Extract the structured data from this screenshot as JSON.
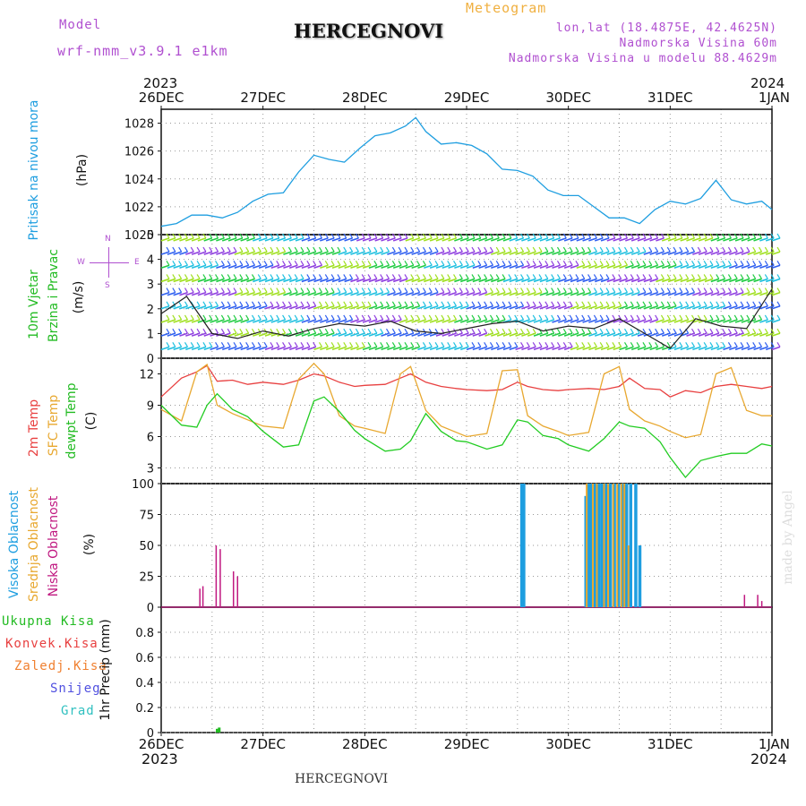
{
  "header": {
    "model_label": "Model",
    "model_name": "wrf-nmm_v3.9.1  e1km",
    "product": "Meteogram",
    "location": "HERCEGNOVI",
    "lonlat": "lon,lat (18.4875E, 42.4625N)",
    "altitude": "Nadmorska Visina 60m",
    "model_altitude": "Nadmorska Visina u modelu 88.4629m",
    "footer_location": "HERCEGNOVI",
    "watermark": "made by Angel"
  },
  "time_axis": {
    "start_year": "2023",
    "end_year": "2024",
    "labels": [
      "26DEC",
      "27DEC",
      "28DEC",
      "29DEC",
      "30DEC",
      "31DEC",
      "1JAN"
    ]
  },
  "panel_labels": {
    "pressure": [
      "Pritisak na nivou mora",
      "(hPa)"
    ],
    "wind": [
      "10m Vjetar",
      "Brzina i Pravac",
      "(m/s)"
    ],
    "compass": [
      "N",
      "W",
      "E",
      "S"
    ],
    "temperature": [
      "2m Temp",
      "SFC Temp",
      "dewpt Temp",
      "(C)"
    ],
    "clouds": [
      "Visoka Oblacnost",
      "Srednja Oblacnost",
      "Niska Oblacnost",
      "(%)"
    ],
    "precip": [
      "Ukupna Kisa",
      "Konvek.Kisa",
      "Zaledj.Kisa",
      "Snijeg",
      "Grad",
      "1hr Precip (mm)"
    ]
  },
  "colors": {
    "pressure": "#1e9ee0",
    "t2m": "#e84040",
    "tsfc": "#e8a830",
    "tdew": "#22cc22",
    "cloud_high": "#1e9ee0",
    "cloud_mid": "#e8a830",
    "cloud_low": "#c01880",
    "precip_total": "#22bb22",
    "label_purple": "#b050d0",
    "label_orange": "#f0b040"
  },
  "chart_data": [
    {
      "type": "line",
      "name": "pressure",
      "x_unit": "days from 26DEC 00",
      "x": [
        0,
        0.15,
        0.3,
        0.45,
        0.6,
        0.75,
        0.9,
        1.05,
        1.2,
        1.35,
        1.5,
        1.65,
        1.8,
        1.95,
        2.1,
        2.25,
        2.4,
        2.5,
        2.6,
        2.75,
        2.9,
        3.05,
        3.2,
        3.35,
        3.5,
        3.65,
        3.8,
        3.95,
        4.1,
        4.25,
        4.4,
        4.55,
        4.7,
        4.85,
        5.0,
        5.15,
        5.3,
        5.45,
        5.6,
        5.75,
        5.9,
        6.0
      ],
      "y": [
        1020.6,
        1020.8,
        1021.4,
        1021.4,
        1021.2,
        1021.6,
        1022.4,
        1022.9,
        1023.0,
        1024.5,
        1025.7,
        1025.4,
        1025.2,
        1026.2,
        1027.1,
        1027.3,
        1027.8,
        1028.4,
        1027.4,
        1026.5,
        1026.6,
        1026.4,
        1025.8,
        1024.7,
        1024.6,
        1024.2,
        1023.2,
        1022.8,
        1022.8,
        1022.0,
        1021.2,
        1021.2,
        1020.8,
        1021.8,
        1022.4,
        1022.2,
        1022.6,
        1023.9,
        1022.5,
        1022.2,
        1022.4,
        1021.8
      ],
      "ylim": [
        1020,
        1029
      ],
      "yticks": [
        "1020",
        "1022",
        "1024",
        "1026",
        "1028"
      ]
    },
    {
      "type": "line",
      "name": "wind",
      "yticks": [
        "0",
        "1",
        "2",
        "3",
        "4",
        "5"
      ],
      "ylim": [
        0,
        5
      ],
      "x": [
        0,
        0.25,
        0.5,
        0.75,
        1.0,
        1.25,
        1.5,
        1.75,
        2.0,
        2.25,
        2.5,
        2.75,
        3.0,
        3.25,
        3.5,
        3.75,
        4.0,
        4.25,
        4.5,
        4.75,
        5.0,
        5.25,
        5.5,
        5.75,
        6.0
      ],
      "speed": [
        1.8,
        2.5,
        1.0,
        0.8,
        1.1,
        0.9,
        1.2,
        1.4,
        1.3,
        1.5,
        1.1,
        1.0,
        1.2,
        1.4,
        1.5,
        1.1,
        1.3,
        1.2,
        1.6,
        1.0,
        0.4,
        1.6,
        1.3,
        1.2,
        2.8
      ]
    },
    {
      "type": "line",
      "name": "temperature",
      "x": [
        0,
        0.2,
        0.35,
        0.45,
        0.55,
        0.7,
        0.85,
        1.0,
        1.2,
        1.35,
        1.5,
        1.6,
        1.75,
        1.9,
        2.0,
        2.2,
        2.35,
        2.45,
        2.6,
        2.75,
        2.9,
        3.0,
        3.2,
        3.35,
        3.5,
        3.6,
        3.75,
        3.9,
        4.0,
        4.2,
        4.35,
        4.5,
        4.6,
        4.75,
        4.9,
        5.0,
        5.15,
        5.3,
        5.45,
        5.6,
        5.75,
        5.9,
        6.0
      ],
      "t2m": [
        9.8,
        11.6,
        12.2,
        12.8,
        11.3,
        11.4,
        11.0,
        11.2,
        11.0,
        11.4,
        12.0,
        11.8,
        11.2,
        10.8,
        10.9,
        11.0,
        11.6,
        12.0,
        11.2,
        10.8,
        10.6,
        10.5,
        10.4,
        10.5,
        11.2,
        10.8,
        10.5,
        10.4,
        10.5,
        10.6,
        10.5,
        10.8,
        11.6,
        10.6,
        10.5,
        9.8,
        10.4,
        10.2,
        10.8,
        11.0,
        10.8,
        10.6,
        10.8
      ],
      "tsfc": [
        8.6,
        7.5,
        12.2,
        12.9,
        9.0,
        8.2,
        7.6,
        7.0,
        6.8,
        11.5,
        13.0,
        12.0,
        8.0,
        7.0,
        6.8,
        6.3,
        12.0,
        12.7,
        8.5,
        7.0,
        6.4,
        6.0,
        6.3,
        12.3,
        12.4,
        8.0,
        7.0,
        6.5,
        6.1,
        6.4,
        12.0,
        12.7,
        8.6,
        7.5,
        7.0,
        6.5,
        5.9,
        6.2,
        12.0,
        12.6,
        8.5,
        8.0,
        8.0
      ],
      "tdew": [
        9.0,
        7.1,
        6.9,
        9.0,
        10.1,
        8.6,
        7.9,
        6.5,
        5.0,
        5.2,
        9.4,
        9.8,
        8.4,
        6.6,
        5.8,
        4.6,
        4.8,
        5.6,
        8.2,
        6.5,
        5.6,
        5.5,
        4.8,
        5.2,
        7.6,
        7.4,
        6.1,
        5.8,
        5.2,
        4.6,
        5.8,
        7.4,
        7.0,
        6.8,
        5.5,
        4.0,
        2.1,
        3.7,
        4.1,
        4.4,
        4.4,
        5.3,
        5.1
      ],
      "ylim": [
        1.5,
        13.5
      ],
      "yticks": [
        "3",
        "6",
        "9",
        "12"
      ]
    },
    {
      "type": "bar",
      "name": "clouds",
      "ylim": [
        0,
        100
      ],
      "yticks": [
        "0",
        "25",
        "50",
        "75",
        "100"
      ],
      "high_x": [
        3.54,
        3.56,
        4.17,
        4.2,
        4.22,
        4.26,
        4.3,
        4.33,
        4.37,
        4.41,
        4.45,
        4.49,
        4.53,
        4.57,
        4.61,
        4.66,
        4.7
      ],
      "high_y": [
        100,
        100,
        90,
        100,
        100,
        100,
        100,
        100,
        100,
        100,
        100,
        100,
        100,
        100,
        100,
        100,
        50
      ],
      "mid_x": [
        4.18,
        4.24,
        4.28,
        4.35,
        4.39,
        4.44,
        4.48,
        4.52,
        4.55,
        4.59
      ],
      "mid_y": [
        100,
        100,
        100,
        100,
        100,
        100,
        100,
        100,
        100,
        50
      ],
      "low_x": [
        0.38,
        0.41,
        0.54,
        0.58,
        0.71,
        0.75,
        5.73,
        5.86,
        5.9
      ],
      "low_y": [
        15,
        17,
        50,
        47,
        29,
        25,
        10,
        10,
        5
      ]
    },
    {
      "type": "bar",
      "name": "precip",
      "ylim": [
        0,
        1
      ],
      "yticks": [
        "0",
        "0.2",
        "0.4",
        "0.6",
        "0.8"
      ],
      "x": [
        0.55,
        0.57
      ],
      "y": [
        0.03,
        0.04
      ]
    }
  ]
}
